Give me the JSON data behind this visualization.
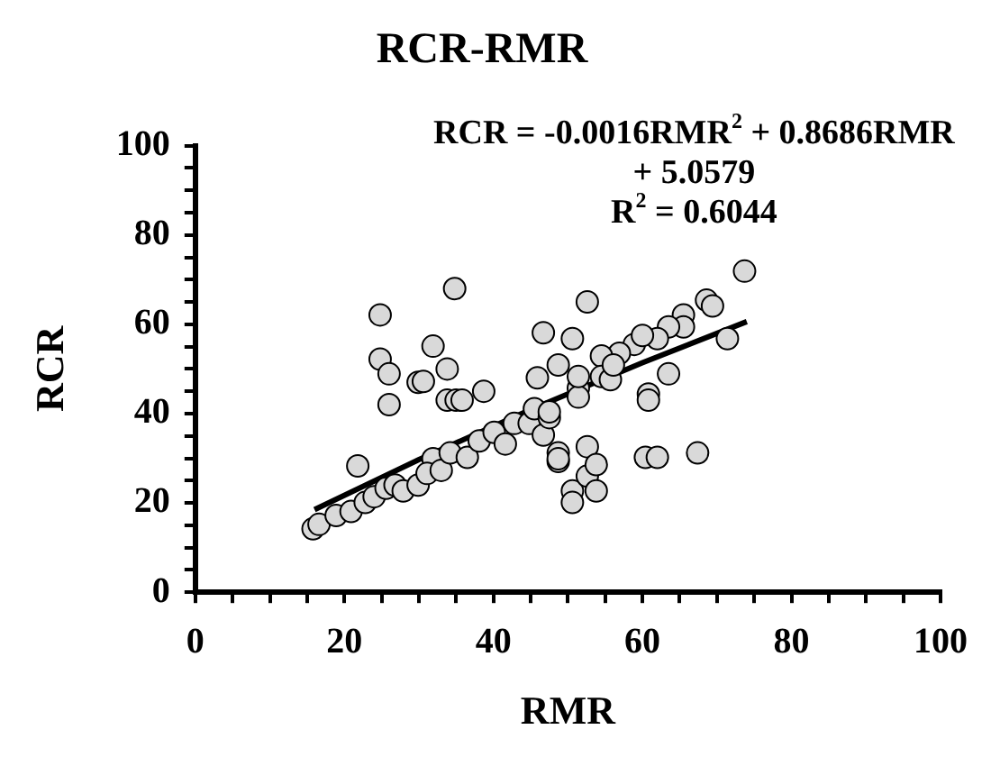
{
  "chart_data": {
    "type": "scatter",
    "title": "RCR-RMR",
    "xlabel": "RMR",
    "ylabel": "RCR",
    "annotations": [
      "RCR = -0.0016RMR$^{2}$ + 0.8686RMR + 5.0579",
      "R$^{2}$ = 0.6044"
    ],
    "xlim": [
      0,
      100
    ],
    "ylim": [
      0,
      100
    ],
    "xticks": [
      0,
      {
        "value": 5,
        "label": null
      },
      {
        "value": 10,
        "label": null
      },
      {
        "value": 15,
        "label": null
      },
      20,
      {
        "value": 25,
        "label": null
      },
      {
        "value": 30,
        "label": null
      },
      {
        "value": 35,
        "label": null
      },
      40,
      {
        "value": 45,
        "label": null
      },
      {
        "value": 50,
        "label": null
      },
      {
        "value": 55,
        "label": null
      },
      60,
      {
        "value": 65,
        "label": null
      },
      {
        "value": 70,
        "label": null
      },
      {
        "value": 75,
        "label": null
      },
      80,
      {
        "value": 85,
        "label": null
      },
      {
        "value": 90,
        "label": null
      },
      {
        "value": 95,
        "label": null
      },
      100
    ],
    "yticks": [
      0,
      {
        "value": 5,
        "label": null
      },
      {
        "value": 10,
        "label": null
      },
      {
        "value": 15,
        "label": null
      },
      20,
      {
        "value": 25,
        "label": null
      },
      {
        "value": 30,
        "label": null
      },
      {
        "value": 35,
        "label": null
      },
      40,
      {
        "value": 45,
        "label": null
      },
      {
        "value": 50,
        "label": null
      },
      {
        "value": 55,
        "label": null
      },
      60,
      {
        "value": 65,
        "label": null
      },
      {
        "value": 70,
        "label": null
      },
      {
        "value": 75,
        "label": null
      },
      80,
      {
        "value": 85,
        "label": null
      },
      {
        "value": 90,
        "label": null
      },
      {
        "value": 95,
        "label": null
      },
      100
    ],
    "grid": false,
    "legend": false,
    "marker": "circle",
    "series": [
      {
        "type": "scatter",
        "color": "#d9d9d9",
        "x": [
          34.8,
          24.8,
          24.8,
          26.0,
          26.0,
          31.9,
          29.9,
          30.6,
          33.8,
          33.8,
          35.0,
          35.8,
          38.7,
          21.8,
          15.8,
          16.6,
          18.9,
          20.9,
          22.8,
          24.0,
          25.6,
          26.8,
          27.9,
          29.9,
          31.9,
          31.1,
          33.0,
          34.2,
          36.5,
          38.1,
          40.1,
          41.6,
          42.8,
          44.8,
          45.5,
          46.7,
          47.5,
          48.7,
          48.7,
          45.9,
          46.7,
          48.7,
          50.6,
          52.6,
          50.6,
          50.6,
          52.6,
          51.4,
          73.7,
          68.6,
          69.4,
          71.4,
          65.5,
          65.5,
          63.5,
          62.0,
          58.9,
          56.9,
          54.5,
          63.5,
          60.8,
          60.8,
          60.4,
          62.0,
          67.4,
          54.5,
          55.7,
          51.4,
          47.5,
          52.6,
          53.8,
          53.8,
          48.7,
          51.4,
          56.1,
          60.0
        ],
        "values": [
          68.0,
          62.1,
          52.2,
          48.9,
          42.0,
          55.1,
          47.0,
          47.2,
          50.0,
          43.0,
          43.0,
          43.0,
          45.0,
          28.3,
          14.2,
          15.2,
          17.2,
          18.1,
          20.1,
          21.4,
          23.3,
          24.0,
          22.7,
          24.0,
          29.9,
          26.6,
          27.3,
          31.2,
          30.2,
          33.9,
          35.8,
          33.2,
          37.8,
          37.8,
          41.1,
          35.2,
          39.1,
          31.2,
          29.3,
          48.0,
          58.1,
          50.9,
          56.8,
          65.0,
          22.7,
          20.1,
          26.0,
          45.7,
          71.9,
          65.4,
          64.1,
          56.8,
          62.1,
          59.4,
          59.4,
          56.8,
          55.5,
          53.5,
          52.9,
          48.9,
          44.4,
          43.0,
          30.2,
          30.2,
          31.2,
          48.3,
          47.6,
          43.7,
          40.4,
          32.6,
          28.6,
          22.7,
          29.9,
          48.3,
          50.9,
          57.5
        ]
      },
      {
        "type": "line",
        "color": "#000000",
        "marker": "none",
        "line_style": "solid",
        "x": [
          16,
          30,
          45,
          60,
          74
        ],
        "values": [
          18.5,
          29.7,
          40.9,
          51.4,
          60.6
        ]
      }
    ]
  }
}
